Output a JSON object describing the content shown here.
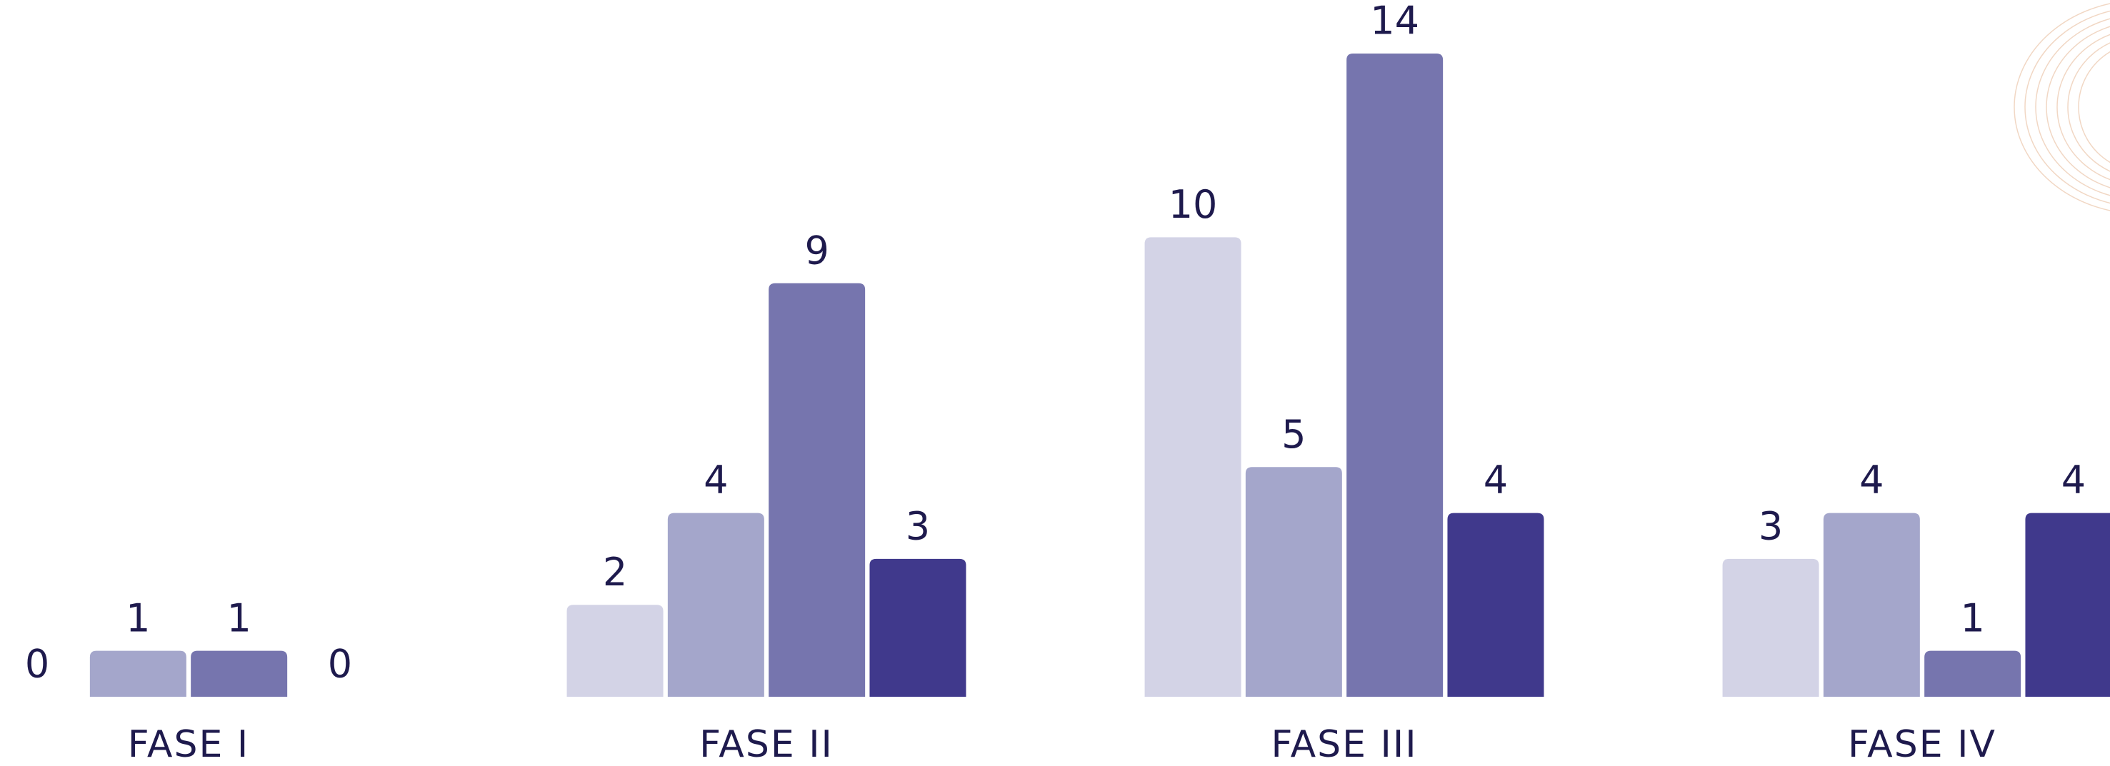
{
  "chart_data": {
    "type": "bar",
    "categories": [
      "FASE I",
      "FASE II",
      "FASE III",
      "FASE IV"
    ],
    "series": [
      {
        "color": "#d3d3e6",
        "values": [
          0,
          2,
          10,
          3
        ]
      },
      {
        "color": "#a4a6cb",
        "values": [
          1,
          4,
          5,
          4
        ]
      },
      {
        "color": "#7675ae",
        "values": [
          1,
          9,
          14,
          1
        ]
      },
      {
        "color": "#40398c",
        "values": [
          0,
          3,
          4,
          4
        ]
      }
    ],
    "ylim": [
      0,
      14
    ]
  }
}
